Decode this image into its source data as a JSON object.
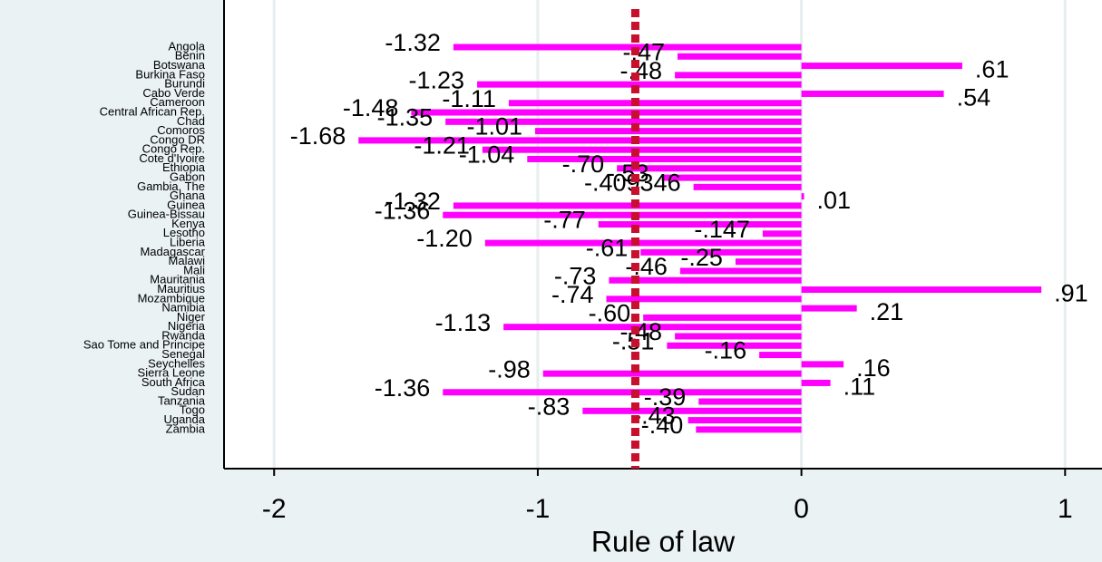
{
  "chart_data": {
    "type": "bar",
    "orientation": "horizontal",
    "x_label": "Rule of law",
    "categories": [
      "Angola",
      "Benin",
      "Botswana",
      "Burkina Faso",
      "Burundi",
      "Cabo Verde",
      "Cameroon",
      "Central African Rep.",
      "Chad",
      "Comoros",
      "Congo DR",
      "Congo Rep.",
      "Cote d'Ivoire",
      "Ethiopia",
      "Gabon",
      "Gambia, The",
      "Ghana",
      "Guinea",
      "Guinea-Bissau",
      "Kenya",
      "Lesotho",
      "Liberia",
      "Madagascar",
      "Malawi",
      "Mali",
      "Mauritania",
      "Mauritius",
      "Mozambique",
      "Namibia",
      "Niger",
      "Nigeria",
      "Rwanda",
      "Sao Tome and Principe",
      "Senegal",
      "Seychelles",
      "Sierra Leone",
      "South Africa",
      "Sudan",
      "Tanzania",
      "Togo",
      "Uganda",
      "Zambia"
    ],
    "values": [
      -1.32,
      -0.47,
      0.61,
      -0.48,
      -1.23,
      0.54,
      -1.11,
      -1.48,
      -1.35,
      -1.01,
      -1.68,
      -1.21,
      -1.04,
      -0.7,
      -0.53,
      -0.409346,
      0.01,
      -1.32,
      -1.36,
      -0.77,
      -0.147,
      -1.2,
      -0.61,
      -0.25,
      -0.46,
      -0.73,
      0.91,
      -0.74,
      0.21,
      -0.6,
      -1.13,
      -0.48,
      -0.51,
      -0.16,
      0.16,
      -0.98,
      0.11,
      -1.36,
      -0.39,
      -0.83,
      -0.43,
      -0.4
    ],
    "value_labels": [
      "-1.32",
      "-.47",
      ".61",
      "-.48",
      "-1.23",
      ".54",
      "-1.11",
      "-1.48",
      "-1.35",
      "-1.01",
      "-1.68",
      "-1.21",
      "-1.04",
      "-.70",
      "-.53",
      "-.409346",
      ".01",
      "-1.32",
      "-1.36",
      "-.77",
      "-.147",
      "-1.20",
      "-.61",
      "-.25",
      "-.46",
      "-.73",
      ".91",
      "-.74",
      ".21",
      "-.60",
      "-1.13",
      "-.48",
      "-.51",
      "-.16",
      ".16",
      "-.98",
      ".11",
      "-1.36",
      "-.39",
      "-.83",
      "-.43",
      "-.40"
    ],
    "color": "#ff00ff",
    "reference_line": -0.63,
    "reference_color": "#c8102e",
    "xlim": [
      -2.19,
      1.14
    ],
    "xticks": [
      -2,
      -1,
      0,
      1
    ],
    "grid": true
  }
}
